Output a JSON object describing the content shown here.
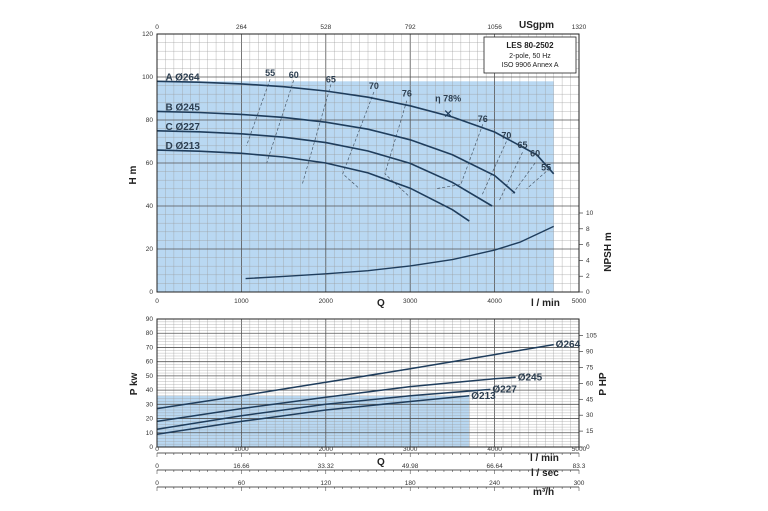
{
  "chart_data": [
    {
      "type": "line",
      "name": "head_chart",
      "info_box": {
        "title": "LES 80-2502",
        "line1": "2-pole, 50 Hz",
        "line2": "ISO 9906 Annex A"
      },
      "y_label": "H m",
      "y2_label": "NPSH m",
      "x_label_bottom": "Q",
      "x_unit_bottom": "l / min",
      "x_unit_top": "USgpm",
      "ylim": [
        0,
        120
      ],
      "y_ticks": [
        "0",
        "20",
        "40",
        "60",
        "80",
        "100",
        "120"
      ],
      "xlim": [
        0,
        5000
      ],
      "x_ticks_bottom": [
        "0",
        "1000",
        "2000",
        "3000",
        "4000",
        "5000"
      ],
      "x_ticks_top": [
        "0",
        "264",
        "528",
        "792",
        "1056",
        "1320"
      ],
      "npsh_ticks": [
        "0",
        "2",
        "4",
        "6",
        "8",
        "10"
      ],
      "series": [
        {
          "name": "A Ø264",
          "label": "A Ø264",
          "x": [
            0,
            500,
            1000,
            1500,
            2000,
            2500,
            3000,
            3500,
            4000,
            4500,
            4700
          ],
          "y": [
            98,
            97.6,
            96.8,
            95.5,
            93.5,
            90.6,
            86.6,
            81.4,
            74.4,
            63.8,
            55
          ]
        },
        {
          "name": "B Ø245",
          "label": "B Ø245",
          "x": [
            0,
            500,
            1000,
            1500,
            2000,
            2500,
            3000,
            3500,
            4000,
            4240
          ],
          "y": [
            84,
            83.5,
            82.6,
            81.2,
            79,
            75.7,
            70.8,
            63.8,
            54.2,
            46
          ]
        },
        {
          "name": "C Ø227",
          "label": "C Ø227",
          "x": [
            0,
            500,
            1000,
            1500,
            2000,
            2500,
            3000,
            3500,
            3970
          ],
          "y": [
            75,
            74.5,
            73.6,
            72,
            69.5,
            65.6,
            59.8,
            51,
            40
          ]
        },
        {
          "name": "D Ø213",
          "label": "D Ø213",
          "x": [
            0,
            500,
            1000,
            1500,
            2000,
            2500,
            3000,
            3500,
            3700
          ],
          "y": [
            66,
            65.5,
            64.5,
            62.8,
            60,
            55.4,
            48.3,
            38.3,
            33
          ]
        }
      ],
      "npsh": {
        "x": [
          1050,
          1500,
          2000,
          2500,
          3000,
          3500,
          4000,
          4300,
          4700
        ],
        "y": [
          1.7,
          1.98,
          2.3,
          2.7,
          3.3,
          4.1,
          5.3,
          6.3,
          8.3
        ]
      },
      "efficiency_labels": [
        {
          "text": "55",
          "q": 1340,
          "h": 100.5
        },
        {
          "text": "60",
          "q": 1620,
          "h": 99.5
        },
        {
          "text": "65",
          "q": 2060,
          "h": 97.5
        },
        {
          "text": "70",
          "q": 2570,
          "h": 94.5
        },
        {
          "text": "76",
          "q": 2960,
          "h": 91
        },
        {
          "text": "η 78%",
          "q": 3450,
          "h": 88.5
        },
        {
          "text": "76",
          "q": 3860,
          "h": 79
        },
        {
          "text": "70",
          "q": 4140,
          "h": 71.5
        },
        {
          "text": "65",
          "q": 4330,
          "h": 67
        },
        {
          "text": "60",
          "q": 4480,
          "h": 63
        },
        {
          "text": "55",
          "q": 4610,
          "h": 56.5
        }
      ],
      "bep_marker": {
        "q": 3450,
        "h": 83
      }
    },
    {
      "type": "line",
      "name": "power_chart",
      "y_label": "P kw",
      "y2_label": "P HP",
      "ylim": [
        0,
        90
      ],
      "y_ticks": [
        "0",
        "10",
        "20",
        "30",
        "40",
        "50",
        "60",
        "70",
        "80",
        "90"
      ],
      "y2_ticks": [
        "0",
        "15",
        "30",
        "45",
        "60",
        "75",
        "90",
        "105"
      ],
      "xlim": [
        0,
        5000
      ],
      "x_label": "Q",
      "x_ticks_lmin": [
        "0",
        "1000",
        "2000",
        "3000",
        "4000",
        "5000"
      ],
      "x_unit_lmin": "l / min",
      "x_ticks_lsec": [
        "0",
        "16.66",
        "33.32",
        "49.98",
        "66.64",
        "83.3"
      ],
      "x_unit_lsec": "l / sec",
      "x_ticks_m3h": [
        "0",
        "60",
        "120",
        "180",
        "240",
        "300"
      ],
      "x_unit_m3h": "m³/h",
      "series": [
        {
          "name": "Ø264",
          "label": "Ø264",
          "x": [
            0,
            1000,
            2000,
            3000,
            4000,
            4700
          ],
          "y": [
            27,
            36,
            45.5,
            55,
            65,
            72
          ]
        },
        {
          "name": "Ø245",
          "label": "Ø245",
          "x": [
            0,
            1000,
            2000,
            3000,
            4000,
            4250
          ],
          "y": [
            18,
            27,
            35,
            42.5,
            48,
            49
          ]
        },
        {
          "name": "Ø227",
          "label": "Ø227",
          "x": [
            0,
            1000,
            2000,
            3000,
            3950
          ],
          "y": [
            12.5,
            22,
            30,
            36,
            40.5
          ]
        },
        {
          "name": "Ø213",
          "label": "Ø213",
          "x": [
            0,
            1000,
            2000,
            3000,
            3700
          ],
          "y": [
            9,
            18,
            26,
            32,
            36
          ]
        }
      ]
    }
  ]
}
